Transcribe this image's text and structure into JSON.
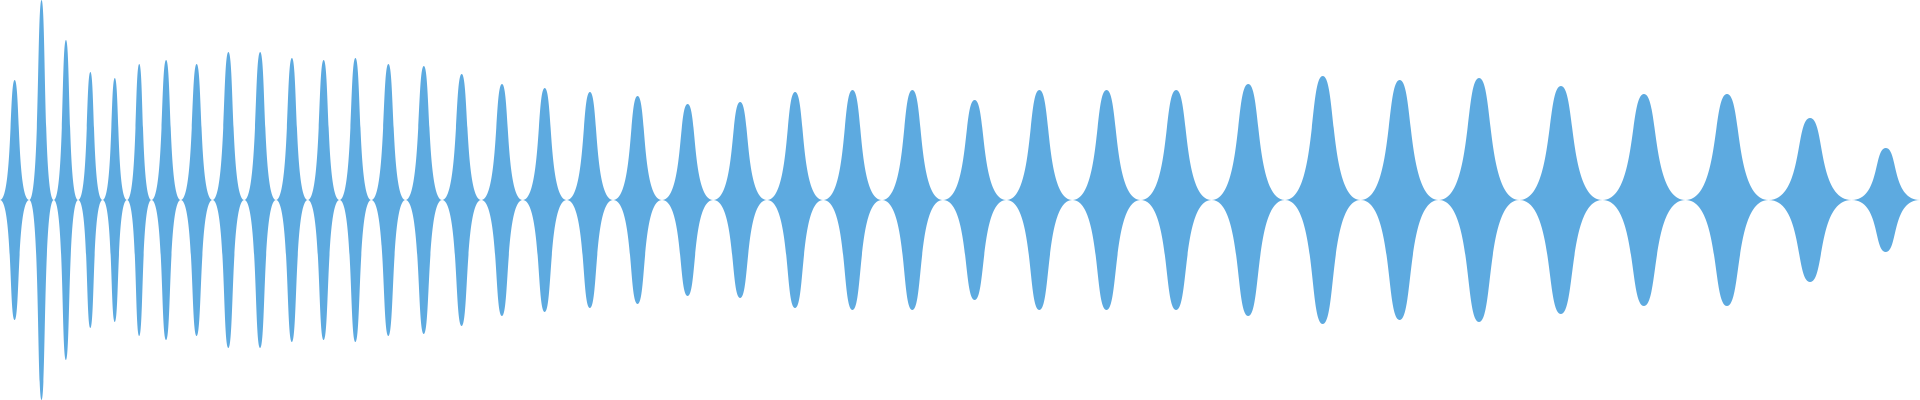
{
  "waveform": {
    "color": "#5DAAE0",
    "background": "#ffffff",
    "baseline": "centered",
    "lobe_peaks": [
      {
        "amp": 0.6,
        "width": 1.2
      },
      {
        "amp": 1.0,
        "width": 1.0
      },
      {
        "amp": 0.8,
        "width": 1.0
      },
      {
        "amp": 0.64,
        "width": 1.0
      },
      {
        "amp": 0.61,
        "width": 1.0
      },
      {
        "amp": 0.68,
        "width": 1.0
      },
      {
        "amp": 0.7,
        "width": 1.2
      },
      {
        "amp": 0.68,
        "width": 1.3
      },
      {
        "amp": 0.74,
        "width": 1.3
      },
      {
        "amp": 0.74,
        "width": 1.3
      },
      {
        "amp": 0.71,
        "width": 1.3
      },
      {
        "amp": 0.7,
        "width": 1.3
      },
      {
        "amp": 0.71,
        "width": 1.3
      },
      {
        "amp": 0.68,
        "width": 1.4
      },
      {
        "amp": 0.67,
        "width": 1.5
      },
      {
        "amp": 0.63,
        "width": 1.6
      },
      {
        "amp": 0.58,
        "width": 1.7
      },
      {
        "amp": 0.56,
        "width": 1.8
      },
      {
        "amp": 0.54,
        "width": 1.9
      },
      {
        "amp": 0.52,
        "width": 2.0
      },
      {
        "amp": 0.48,
        "width": 2.1
      },
      {
        "amp": 0.49,
        "width": 2.2
      },
      {
        "amp": 0.54,
        "width": 2.3
      },
      {
        "amp": 0.55,
        "width": 2.4
      },
      {
        "amp": 0.55,
        "width": 2.5
      },
      {
        "amp": 0.5,
        "width": 2.6
      },
      {
        "amp": 0.55,
        "width": 2.7
      },
      {
        "amp": 0.55,
        "width": 2.8
      },
      {
        "amp": 0.55,
        "width": 2.9
      },
      {
        "amp": 0.58,
        "width": 3.0
      },
      {
        "amp": 0.62,
        "width": 3.1
      },
      {
        "amp": 0.6,
        "width": 3.2
      },
      {
        "amp": 0.61,
        "width": 3.3
      },
      {
        "amp": 0.57,
        "width": 3.4
      },
      {
        "amp": 0.53,
        "width": 3.4
      },
      {
        "amp": 0.53,
        "width": 3.4
      },
      {
        "amp": 0.41,
        "width": 3.4
      },
      {
        "amp": 0.26,
        "width": 2.8
      }
    ]
  }
}
